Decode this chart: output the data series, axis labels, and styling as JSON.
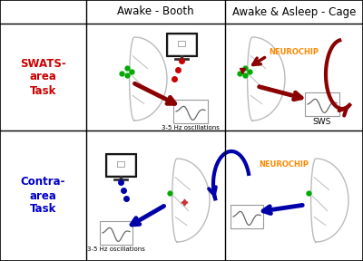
{
  "col_headers": [
    "Awake - Booth",
    "Awake & Asleep - Cage"
  ],
  "row_headers": [
    "SWATS-\narea\nTask",
    "Contra-\narea\nTask"
  ],
  "row_header_colors": [
    "#cc0000",
    "#0000cc"
  ],
  "background": "#ffffff",
  "neurochip_color": "#ff8800",
  "sws_label": "SWS",
  "oscillations_label": "3-5 Hz oscillations",
  "neurochip_label": "NEUROCHIP",
  "dark_red": "#8b0000",
  "dark_blue": "#0000aa",
  "green_dot": "#00aa00",
  "red_dot": "#cc0000",
  "brain_line": "#bbbbbb",
  "monitor_dark": "#222222",
  "wave_color": "#666666",
  "grid_lw": 1.0,
  "C0": 0,
  "C1": 95,
  "C2": 248,
  "C3": 400,
  "R0": 288,
  "R1": 262,
  "R2": 144,
  "R3": 0
}
